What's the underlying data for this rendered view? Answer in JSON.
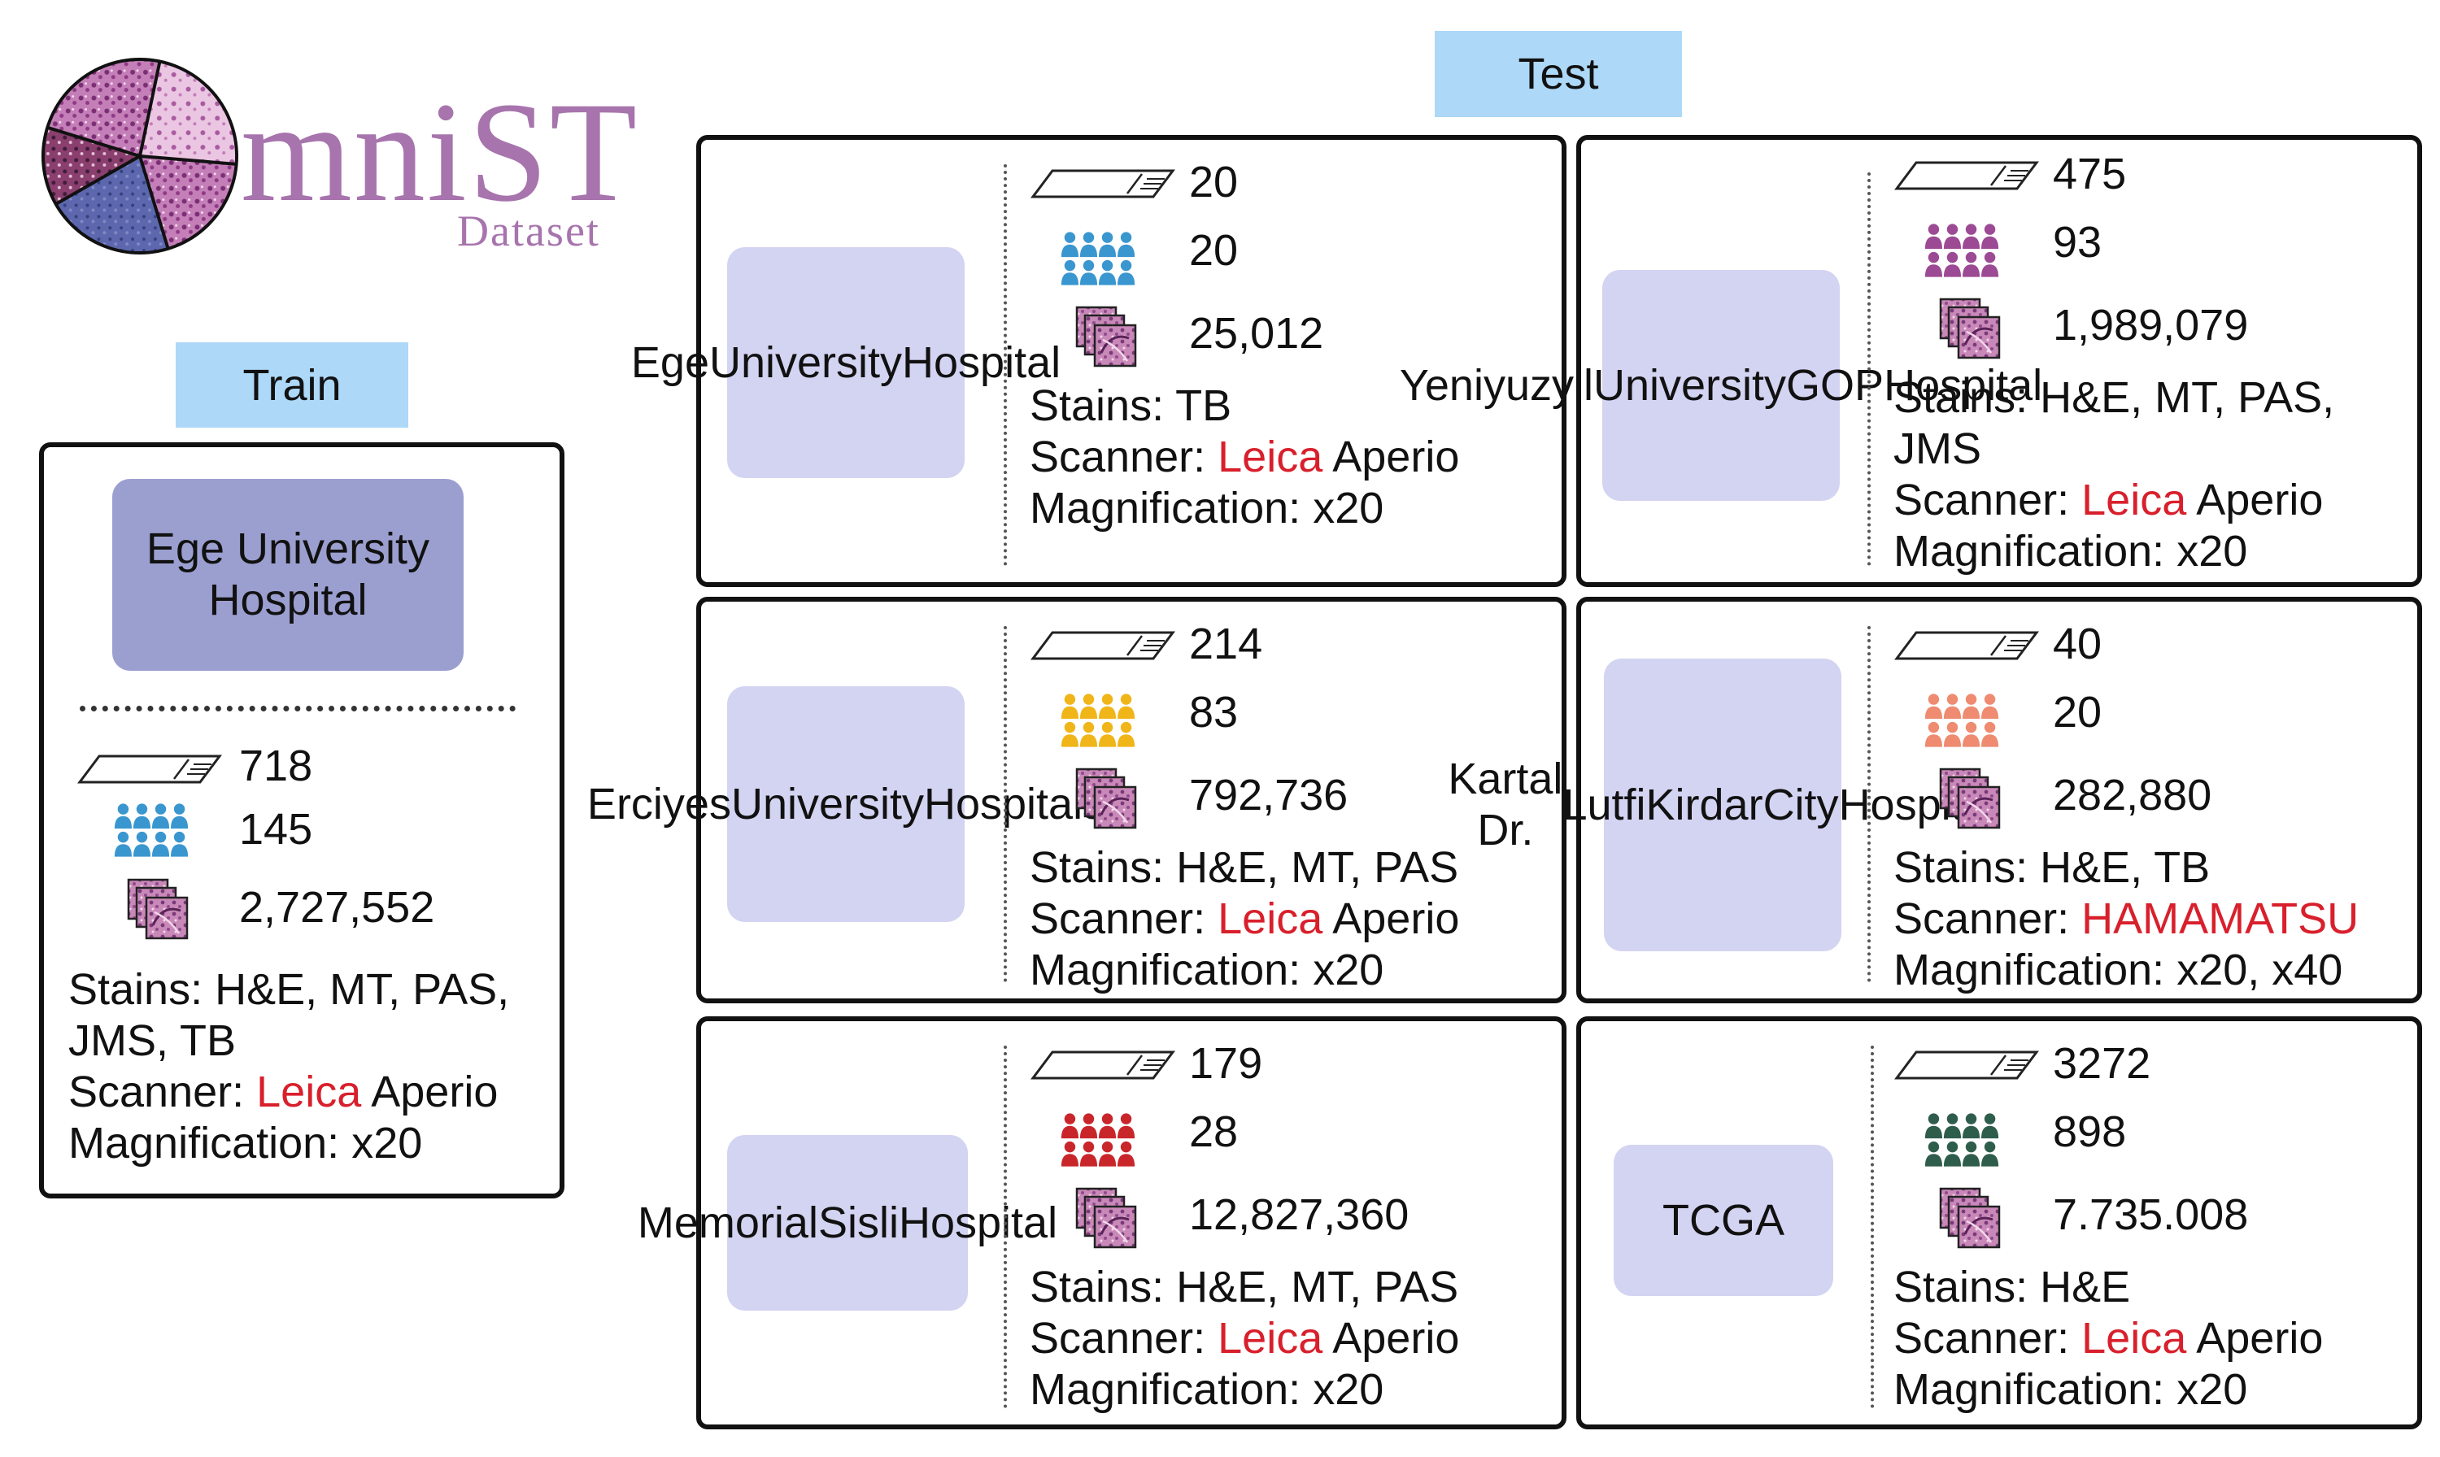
{
  "logo": {
    "wordmark": "mniST",
    "subtitle": "Dataset",
    "color": "#a774ad"
  },
  "labels": {
    "train": "Train",
    "test": "Test",
    "stains_prefix": "Stains: ",
    "scanner_prefix": "Scanner: ",
    "magnification_prefix": "Magnification: "
  },
  "icons": {
    "slides": "slide-icon",
    "patients": "people-group-icon",
    "patches": "tissue-patches-icon"
  },
  "train": {
    "hospital": "Ege University Hospital",
    "slides": "718",
    "patients": "145",
    "patches": "2,727,552",
    "stains_line1": "H&E, MT, PAS,",
    "stains_line2": "JMS, TB",
    "scanner_brand": "Leica",
    "scanner_model": " Aperio",
    "magnification": "x20",
    "people_color": "#3a96cf"
  },
  "test": [
    {
      "hospital_lines": [
        "Ege",
        "University",
        "Hospital"
      ],
      "slides": "20",
      "patients": "20",
      "patches": "25,012",
      "stains_line1": "TB",
      "stains_line2": "",
      "scanner_brand": "Leica",
      "scanner_model": " Aperio",
      "magnification": "x20",
      "people_color": "#3a96cf"
    },
    {
      "hospital_lines": [
        "Yeniyuzyil",
        "University",
        "GOP",
        "Hospital"
      ],
      "slides": "475",
      "patients": "93",
      "patches": "1,989,079",
      "stains_line1": "H&E, MT, PAS,",
      "stains_line2": "JMS",
      "scanner_brand": "Leica",
      "scanner_model": " Aperio",
      "magnification": "x20",
      "people_color": "#9c4a94"
    },
    {
      "hospital_lines": [
        "Erciyes",
        "University",
        "Hospitals"
      ],
      "slides": "214",
      "patients": "83",
      "patches": "792,736",
      "stains_line1": "H&E, MT, PAS",
      "stains_line2": "",
      "scanner_brand": "Leica",
      "scanner_model": " Aperio",
      "magnification": "x20",
      "people_color": "#f0b519"
    },
    {
      "hospital_lines": [
        "Kartal Dr.",
        "Lutfi",
        "Kirdar",
        "City",
        "Hospital"
      ],
      "slides": "40",
      "patients": "20",
      "patches": "282,880",
      "stains_line1": "H&E, TB",
      "stains_line2": "",
      "scanner_brand": "HAMAMATSU",
      "scanner_model": "",
      "magnification": "x20, x40",
      "people_color": "#ee8b70"
    },
    {
      "hospital_lines": [
        "Memorial",
        "Sisli",
        "Hospital"
      ],
      "slides": "179",
      "patients": "28",
      "patches": "12,827,360",
      "stains_line1": "H&E, MT, PAS",
      "stains_line2": "",
      "scanner_brand": "Leica",
      "scanner_model": " Aperio",
      "magnification": "x20",
      "people_color": "#c9262b"
    },
    {
      "hospital_lines": [
        "TCGA"
      ],
      "slides": "3272",
      "patients": "898",
      "patches": "7.735.008",
      "stains_line1": "H&E",
      "stains_line2": "",
      "scanner_brand": "Leica",
      "scanner_model": " Aperio",
      "magnification": "x20",
      "people_color": "#2f5d4c"
    }
  ]
}
